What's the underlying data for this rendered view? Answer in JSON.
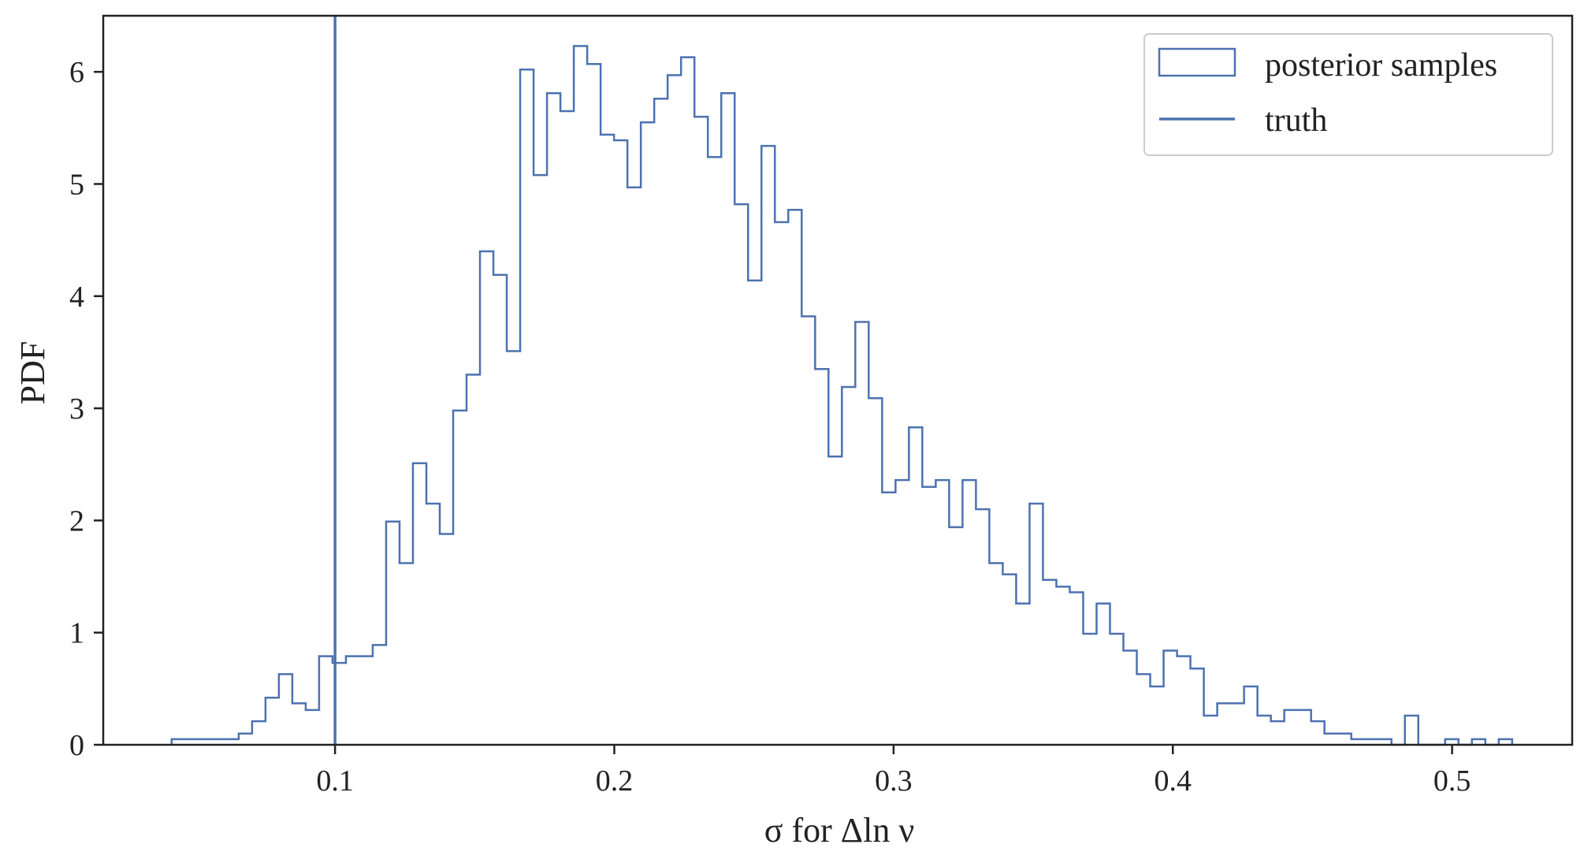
{
  "chart_data": {
    "type": "histogram",
    "title": "",
    "xlabel": "σ for Δln ν",
    "ylabel": "PDF",
    "xlim": [
      0.017,
      0.543
    ],
    "ylim": [
      0,
      6.5
    ],
    "xticks": [
      0.1,
      0.2,
      0.3,
      0.4,
      0.5
    ],
    "xtick_labels": [
      "0.1",
      "0.2",
      "0.3",
      "0.4",
      "0.5"
    ],
    "yticks": [
      0,
      1,
      2,
      3,
      4,
      5,
      6
    ],
    "ytick_labels": [
      "0",
      "1",
      "2",
      "3",
      "4",
      "5",
      "6"
    ],
    "grid": false,
    "legend_position": "top-right",
    "series": [
      {
        "name": "posterior samples",
        "kind": "step-histogram",
        "color": "#4c72b0",
        "bin_edges": [
          0.0415,
          0.0463,
          0.0511,
          0.0559,
          0.0607,
          0.0655,
          0.0703,
          0.0751,
          0.0799,
          0.0847,
          0.0895,
          0.0943,
          0.0991,
          0.1039,
          0.1087,
          0.1135,
          0.1183,
          0.1231,
          0.1279,
          0.1327,
          0.1375,
          0.1423,
          0.1471,
          0.1519,
          0.1567,
          0.1615,
          0.1663,
          0.1711,
          0.1759,
          0.1807,
          0.1855,
          0.1903,
          0.1951,
          0.1999,
          0.2047,
          0.2095,
          0.2143,
          0.2191,
          0.2239,
          0.2287,
          0.2335,
          0.2383,
          0.2431,
          0.2479,
          0.2527,
          0.2575,
          0.2623,
          0.2671,
          0.2719,
          0.2767,
          0.2815,
          0.2863,
          0.2911,
          0.2959,
          0.3007,
          0.3055,
          0.3103,
          0.3151,
          0.3199,
          0.3247,
          0.3295,
          0.3343,
          0.3391,
          0.3439,
          0.3487,
          0.3535,
          0.3583,
          0.3631,
          0.3679,
          0.3727,
          0.3775,
          0.3823,
          0.3871,
          0.3919,
          0.3967,
          0.4015,
          0.4063,
          0.4111,
          0.4159,
          0.4207,
          0.4255,
          0.4303,
          0.4351,
          0.4399,
          0.4447,
          0.4495,
          0.4543,
          0.4591,
          0.4639,
          0.4687,
          0.4735,
          0.4783,
          0.4831,
          0.4879,
          0.4927,
          0.4975,
          0.5023,
          0.5071,
          0.5119,
          0.5167,
          0.5215
        ],
        "values": [
          0.05,
          0.05,
          0.05,
          0.05,
          0.05,
          0.1,
          0.21,
          0.42,
          0.63,
          0.37,
          0.31,
          0.79,
          0.73,
          0.79,
          0.79,
          0.89,
          1.99,
          1.62,
          2.51,
          2.15,
          1.88,
          2.98,
          3.3,
          4.4,
          4.19,
          3.51,
          6.02,
          5.08,
          5.81,
          5.65,
          6.23,
          6.07,
          5.44,
          5.39,
          4.97,
          5.55,
          5.76,
          5.97,
          6.13,
          5.6,
          5.24,
          5.81,
          4.82,
          4.14,
          5.34,
          4.66,
          4.77,
          3.82,
          3.35,
          2.57,
          3.19,
          3.77,
          3.09,
          2.25,
          2.36,
          2.83,
          2.3,
          2.36,
          1.94,
          2.36,
          2.1,
          1.62,
          1.52,
          1.26,
          2.15,
          1.47,
          1.41,
          1.36,
          0.99,
          1.26,
          0.99,
          0.84,
          0.63,
          0.52,
          0.84,
          0.79,
          0.68,
          0.26,
          0.37,
          0.37,
          0.52,
          0.26,
          0.21,
          0.31,
          0.31,
          0.21,
          0.1,
          0.1,
          0.05,
          0.05,
          0.05,
          0.0,
          0.26,
          0.0,
          0.0,
          0.05,
          0.0,
          0.05,
          0.0,
          0.05
        ]
      },
      {
        "name": "truth",
        "kind": "vertical-line",
        "color": "#4c72b0",
        "x": 0.1
      }
    ]
  }
}
